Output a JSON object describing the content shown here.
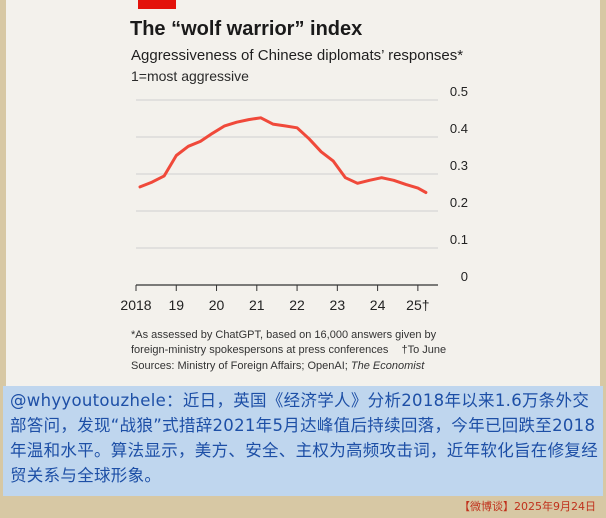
{
  "chart_data": {
    "type": "line",
    "title": "The “wolf warrior” index",
    "subtitle": "Aggressiveness of Chinese diplomats’ responses*",
    "scale_note": "1=most aggressive",
    "x_ticks": [
      "2018",
      "19",
      "20",
      "21",
      "22",
      "23",
      "24",
      "25†"
    ],
    "y_ticks": [
      "0.5",
      "0.4",
      "0.3",
      "0.2",
      "0.1",
      "0"
    ],
    "ylim": [
      0,
      0.5
    ],
    "xlim": [
      2018,
      2025.5
    ],
    "grid": true,
    "series": [
      {
        "color": "#f0493a",
        "x": [
          2018.1,
          2018.4,
          2018.7,
          2019.0,
          2019.3,
          2019.6,
          2019.9,
          2020.2,
          2020.5,
          2020.8,
          2021.1,
          2021.4,
          2021.7,
          2022.0,
          2022.3,
          2022.6,
          2022.9,
          2023.2,
          2023.5,
          2023.8,
          2024.1,
          2024.4,
          2024.7,
          2025.0,
          2025.2
        ],
        "y": [
          0.265,
          0.278,
          0.295,
          0.35,
          0.375,
          0.388,
          0.41,
          0.43,
          0.44,
          0.447,
          0.452,
          0.435,
          0.43,
          0.425,
          0.395,
          0.36,
          0.335,
          0.29,
          0.275,
          0.283,
          0.29,
          0.283,
          0.272,
          0.262,
          0.25
        ]
      }
    ]
  },
  "footnotes": {
    "line1": "*As assessed by ChatGPT, based on 16,000 answers given by",
    "line2": "foreign-ministry spokespersons at press conferences",
    "line2_note": "†To June",
    "line3_prefix": "Sources: Ministry of Foreign Affairs; OpenAI; ",
    "line3_publication": "The Economist"
  },
  "post": {
    "text": "@whyyoutouzhele：近日，英国《经济学人》分析2018年以来1.6万条外交部答问，发现“战狼”式措辞2021年5月达峰值后持续回落，今年已回跌至2018年温和水平。算法显示，美方、安全、主权为高频攻击词，近年软化旨在修复经贸关系与全球形象。",
    "source": "【微博谈】2025年9月24日"
  },
  "colors": {
    "accent_red": "#e3120b",
    "line_red": "#f0493a",
    "post_blue": "#1d4fa6",
    "post_bg": "#bfd6ee"
  }
}
